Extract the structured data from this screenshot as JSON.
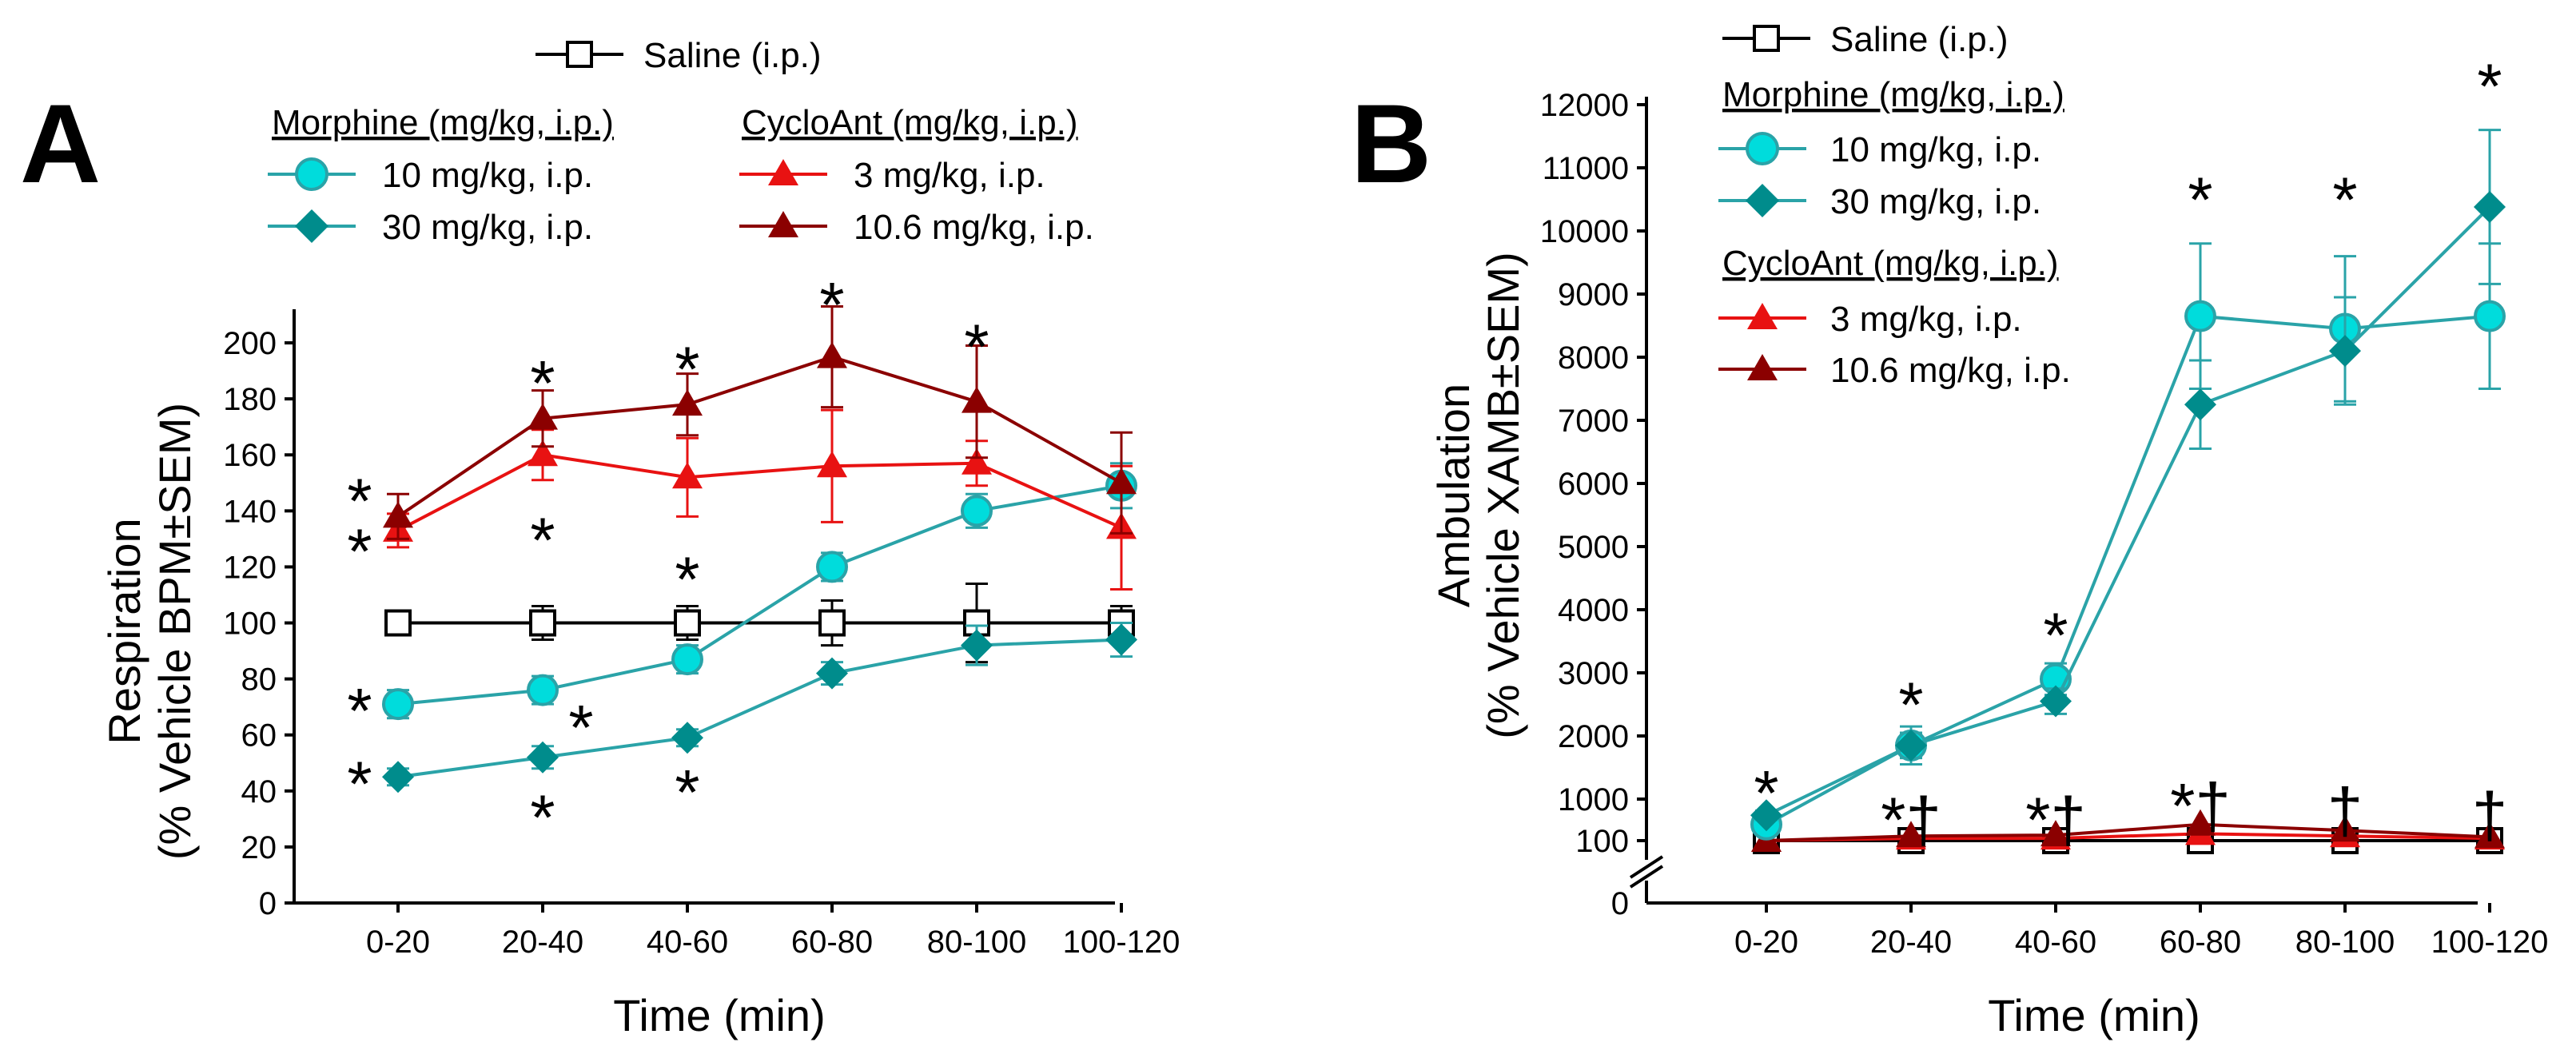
{
  "colors": {
    "saline": "#000000",
    "morphine10": "#00dcdc",
    "morphine30": "#008c8c",
    "morphine_line": "#2aa3a8",
    "cycloant3": "#e81212",
    "cycloant106": "#8b0000",
    "axis": "#000000"
  },
  "icons": {
    "saline": "square-marker-icon",
    "morphine10": "circle-marker-icon",
    "morphine30": "diamond-marker-icon",
    "cycloant": "triangle-marker-icon"
  },
  "chart_data": [
    {
      "panel": "A",
      "type": "line",
      "title": "",
      "xlabel": "Time (min)",
      "ylabel": "Respiration",
      "ylabel2": "(% Vehicle BPM±SEM)",
      "categories": [
        "0-20",
        "20-40",
        "40-60",
        "60-80",
        "80-100",
        "100-120"
      ],
      "yticks": [
        0,
        20,
        40,
        60,
        80,
        100,
        120,
        140,
        160,
        180,
        200
      ],
      "ylim": [
        0,
        212
      ],
      "legend": {
        "saline_label": "Saline (i.p.)",
        "morphine_header": "Morphine (mg/kg, i.p.)",
        "cycloant_header": "CycloAnt (mg/kg, i.p.)",
        "m10_label": "10 mg/kg, i.p.",
        "m30_label": "30 mg/kg, i.p.",
        "c3_label": "3 mg/kg, i.p.",
        "c106_label": "10.6 mg/kg, i.p."
      },
      "series": [
        {
          "name": "Saline (i.p.)",
          "key": "saline",
          "marker": "square",
          "values": [
            100,
            100,
            100,
            100,
            100,
            100
          ],
          "errors": [
            0,
            6,
            6,
            8,
            14,
            6
          ]
        },
        {
          "name": "Morphine 10 mg/kg, i.p.",
          "key": "morphine10",
          "marker": "circle",
          "values": [
            71,
            76,
            87,
            120,
            140,
            149
          ],
          "errors": [
            5,
            5,
            5,
            5,
            6,
            8
          ]
        },
        {
          "name": "Morphine 30 mg/kg, i.p.",
          "key": "morphine30",
          "marker": "diamond",
          "values": [
            45,
            52,
            59,
            82,
            92,
            94
          ],
          "errors": [
            3,
            4,
            3,
            4,
            7,
            6
          ]
        },
        {
          "name": "CycloAnt 3 mg/kg, i.p.",
          "key": "cycloant3",
          "marker": "triangle",
          "values": [
            133,
            160,
            152,
            156,
            157,
            134
          ],
          "errors": [
            6,
            9,
            14,
            20,
            8,
            22
          ]
        },
        {
          "name": "CycloAnt 10.6 mg/kg, i.p.",
          "key": "cycloant106",
          "marker": "triangle",
          "values": [
            138,
            173,
            178,
            195,
            179,
            150
          ],
          "errors": [
            8,
            10,
            11,
            18,
            20,
            18
          ]
        }
      ],
      "annotations": [
        {
          "text": "*",
          "category": "0-20",
          "y": 146,
          "side": "left"
        },
        {
          "text": "*",
          "category": "0-20",
          "y": 128,
          "side": "left"
        },
        {
          "text": "*",
          "category": "0-20",
          "y": 71,
          "side": "left"
        },
        {
          "text": "*",
          "category": "0-20",
          "y": 45,
          "side": "left"
        },
        {
          "text": "*",
          "category": "20-40",
          "y": 188,
          "side": "center"
        },
        {
          "text": "*",
          "category": "20-40",
          "y": 132,
          "side": "center"
        },
        {
          "text": "*",
          "category": "20-40",
          "y": 65,
          "side": "right"
        },
        {
          "text": "*",
          "category": "20-40",
          "y": 33,
          "side": "center"
        },
        {
          "text": "*",
          "category": "40-60",
          "y": 193,
          "side": "center"
        },
        {
          "text": "*",
          "category": "40-60",
          "y": 118,
          "side": "center"
        },
        {
          "text": "*",
          "category": "40-60",
          "y": 42,
          "side": "center"
        },
        {
          "text": "*",
          "category": "60-80",
          "y": 216,
          "side": "center"
        },
        {
          "text": "*",
          "category": "80-100",
          "y": 201,
          "side": "center"
        }
      ]
    },
    {
      "panel": "B",
      "type": "line",
      "title": "",
      "xlabel": "Time (min)",
      "ylabel": "Ambulation",
      "ylabel2": "(% Vehicle XAMB±SEM)",
      "categories": [
        "0-20",
        "20-40",
        "40-60",
        "60-80",
        "80-100",
        "100-120"
      ],
      "yticks": [
        100,
        1000,
        2000,
        3000,
        4000,
        5000,
        6000,
        7000,
        8000,
        9000,
        10000,
        11000,
        12000
      ],
      "ytick_zero": "0",
      "ylim": [
        100,
        12000
      ],
      "axis_break": true,
      "legend": {
        "saline_label": "Saline (i.p.)",
        "morphine_header": "Morphine (mg/kg, i.p.)",
        "cycloant_header": "CycloAnt (mg/kg, i.p.)",
        "m10_label": "10 mg/kg, i.p.",
        "m30_label": "30 mg/kg, i.p.",
        "c3_label": "3 mg/kg, i.p.",
        "c106_label": "10.6 mg/kg, i.p."
      },
      "series": [
        {
          "name": "Saline (i.p.)",
          "key": "saline",
          "marker": "square",
          "values": [
            100,
            100,
            100,
            100,
            100,
            100
          ],
          "errors": [
            0,
            0,
            0,
            0,
            0,
            0
          ]
        },
        {
          "name": "CycloAnt 3 mg/kg, i.p.",
          "key": "cycloant3",
          "marker": "triangle",
          "values": [
            100,
            150,
            150,
            250,
            200,
            150
          ],
          "errors": [
            0,
            0,
            0,
            0,
            0,
            0
          ]
        },
        {
          "name": "CycloAnt 10.6 mg/kg, i.p.",
          "key": "cycloant106",
          "marker": "triangle",
          "values": [
            100,
            200,
            220,
            450,
            320,
            180
          ],
          "errors": [
            0,
            0,
            0,
            0,
            0,
            0
          ]
        },
        {
          "name": "Morphine 10 mg/kg, i.p.",
          "key": "morphine10",
          "marker": "circle",
          "values": [
            450,
            1850,
            2900,
            8650,
            8450,
            8650
          ],
          "errors": [
            100,
            300,
            250,
            1150,
            1150,
            1150
          ]
        },
        {
          "name": "Morphine 30 mg/kg, i.p.",
          "key": "morphine30",
          "marker": "diamond",
          "values": [
            650,
            1850,
            2550,
            7250,
            8100,
            10380
          ],
          "errors": [
            100,
            200,
            200,
            700,
            850,
            1220
          ]
        }
      ],
      "annotations": [
        {
          "text": "*",
          "category": "0-20",
          "y": 1200,
          "side": "center"
        },
        {
          "text": "*",
          "category": "20-40",
          "y": 2600,
          "side": "center"
        },
        {
          "text": "*†",
          "category": "20-40",
          "y": 700,
          "side": "center"
        },
        {
          "text": "*",
          "category": "40-60",
          "y": 3700,
          "side": "center"
        },
        {
          "text": "*†",
          "category": "40-60",
          "y": 700,
          "side": "center"
        },
        {
          "text": "*",
          "category": "60-80",
          "y": 10600,
          "side": "center"
        },
        {
          "text": "*†",
          "category": "60-80",
          "y": 1000,
          "side": "center"
        },
        {
          "text": "*",
          "category": "80-100",
          "y": 10600,
          "side": "center"
        },
        {
          "text": "†",
          "category": "80-100",
          "y": 900,
          "side": "center"
        },
        {
          "text": "*",
          "category": "100-120",
          "y": 12400,
          "side": "center"
        },
        {
          "text": "†",
          "category": "100-120",
          "y": 800,
          "side": "center"
        }
      ]
    }
  ],
  "panel_labels": {
    "a": "A",
    "b": "B"
  }
}
